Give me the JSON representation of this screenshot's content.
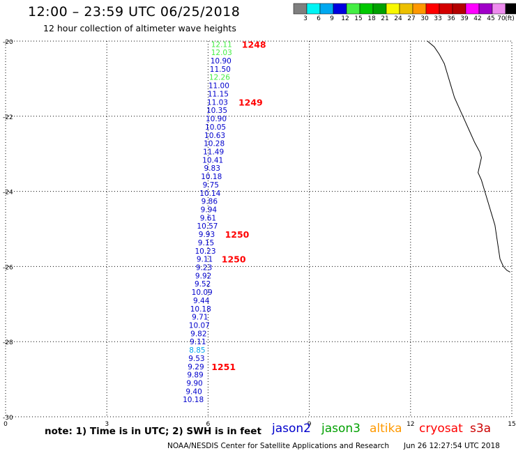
{
  "header": {
    "title": "12:00 – 23:59 UTC 06/25/2018",
    "subtitle": "12 hour collection of altimeter wave heights"
  },
  "legend": {
    "colors": [
      "#7f7f7f",
      "#00f4f4",
      "#00a8f0",
      "#0000e0",
      "#44ee44",
      "#00c800",
      "#00a000",
      "#f8f800",
      "#ecc000",
      "#ff9800",
      "#ff0000",
      "#d40000",
      "#b40000",
      "#ff00ff",
      "#a000c8",
      "#ee8cee",
      "#000000"
    ],
    "labels": [
      "3",
      "6",
      "9",
      "12",
      "15",
      "18",
      "21",
      "24",
      "27",
      "30",
      "33",
      "36",
      "39",
      "42",
      "45",
      "70"
    ],
    "unit": "(ft)"
  },
  "note": "note:  1) Time is in UTC;  2) SWH is in feet",
  "satellites": [
    {
      "name": "jason2",
      "color": "#0000cc"
    },
    {
      "name": "jason3",
      "color": "#00a000"
    },
    {
      "name": "altika",
      "color": "#ff9900"
    },
    {
      "name": "cryosat",
      "color": "#ff0000"
    },
    {
      "name": "s3a",
      "color": "#cc0000"
    }
  ],
  "footer": {
    "credit": "NOAA/NESDIS Center for Satellite Applications and Research",
    "timestamp": "Jun 26 12:27:54 UTC 2018"
  },
  "chart_data": {
    "type": "scatter",
    "title": "12:00 – 23:59 UTC 06/25/2018",
    "subtitle": "12 hour collection of altimeter wave heights",
    "xlim": [
      0,
      15
    ],
    "ylim": [
      -30,
      -20
    ],
    "x_ticks": [
      0,
      3,
      6,
      9,
      12,
      15
    ],
    "y_ticks": [
      -30,
      -28,
      -26,
      -24,
      -22,
      -20
    ],
    "grid": true,
    "points": [
      {
        "x": 6.4,
        "y": -20.08,
        "value": "12.11",
        "color": "#44ee44"
      },
      {
        "x": 6.4,
        "y": -20.3,
        "value": "12.03",
        "color": "#44ee44"
      },
      {
        "x": 6.38,
        "y": -20.52,
        "value": "10.90",
        "color": "#0000cc"
      },
      {
        "x": 6.36,
        "y": -20.74,
        "value": "11.50",
        "color": "#0000cc"
      },
      {
        "x": 6.34,
        "y": -20.96,
        "value": "12.26",
        "color": "#44ee44"
      },
      {
        "x": 6.32,
        "y": -21.18,
        "value": "11.00",
        "color": "#0000cc"
      },
      {
        "x": 6.3,
        "y": -21.4,
        "value": "11.15",
        "color": "#0000cc"
      },
      {
        "x": 6.28,
        "y": -21.62,
        "value": "11.03",
        "color": "#0000cc"
      },
      {
        "x": 6.26,
        "y": -21.84,
        "value": "10.35",
        "color": "#0000cc"
      },
      {
        "x": 6.24,
        "y": -22.06,
        "value": "10.90",
        "color": "#0000cc"
      },
      {
        "x": 6.22,
        "y": -22.28,
        "value": "10.05",
        "color": "#0000cc"
      },
      {
        "x": 6.2,
        "y": -22.5,
        "value": "10.63",
        "color": "#0000cc"
      },
      {
        "x": 6.18,
        "y": -22.72,
        "value": "10.28",
        "color": "#0000cc"
      },
      {
        "x": 6.16,
        "y": -22.94,
        "value": "11.49",
        "color": "#0000cc"
      },
      {
        "x": 6.14,
        "y": -23.16,
        "value": "10.41",
        "color": "#0000cc"
      },
      {
        "x": 6.12,
        "y": -23.38,
        "value": "9.83",
        "color": "#0000cc"
      },
      {
        "x": 6.1,
        "y": -23.6,
        "value": "10.18",
        "color": "#0000cc"
      },
      {
        "x": 6.08,
        "y": -23.82,
        "value": "9.75",
        "color": "#0000cc"
      },
      {
        "x": 6.06,
        "y": -24.04,
        "value": "10.14",
        "color": "#0000cc"
      },
      {
        "x": 6.04,
        "y": -24.26,
        "value": "9.86",
        "color": "#0000cc"
      },
      {
        "x": 6.02,
        "y": -24.48,
        "value": "9.94",
        "color": "#0000cc"
      },
      {
        "x": 6.0,
        "y": -24.7,
        "value": "9.61",
        "color": "#0000cc"
      },
      {
        "x": 5.98,
        "y": -24.92,
        "value": "10.57",
        "color": "#0000cc"
      },
      {
        "x": 5.96,
        "y": -25.14,
        "value": "9.93",
        "color": "#0000cc"
      },
      {
        "x": 5.94,
        "y": -25.36,
        "value": "9.15",
        "color": "#0000cc"
      },
      {
        "x": 5.92,
        "y": -25.58,
        "value": "10.23",
        "color": "#0000cc"
      },
      {
        "x": 5.9,
        "y": -25.8,
        "value": "9.11",
        "color": "#0000cc"
      },
      {
        "x": 5.88,
        "y": -26.02,
        "value": "9.23",
        "color": "#0000cc"
      },
      {
        "x": 5.86,
        "y": -26.24,
        "value": "9.92",
        "color": "#0000cc"
      },
      {
        "x": 5.84,
        "y": -26.46,
        "value": "9.52",
        "color": "#0000cc"
      },
      {
        "x": 5.82,
        "y": -26.68,
        "value": "10.09",
        "color": "#0000cc"
      },
      {
        "x": 5.8,
        "y": -26.9,
        "value": "9.44",
        "color": "#0000cc"
      },
      {
        "x": 5.78,
        "y": -27.12,
        "value": "10.18",
        "color": "#0000cc"
      },
      {
        "x": 5.76,
        "y": -27.34,
        "value": "9.71",
        "color": "#0000cc"
      },
      {
        "x": 5.74,
        "y": -27.56,
        "value": "10.07",
        "color": "#0000cc"
      },
      {
        "x": 5.72,
        "y": -27.78,
        "value": "9.82",
        "color": "#0000cc"
      },
      {
        "x": 5.7,
        "y": -28.0,
        "value": "9.11",
        "color": "#0000cc"
      },
      {
        "x": 5.68,
        "y": -28.22,
        "value": "8.85",
        "color": "#00a8f0"
      },
      {
        "x": 5.66,
        "y": -28.44,
        "value": "9.53",
        "color": "#0000cc"
      },
      {
        "x": 5.64,
        "y": -28.66,
        "value": "9.29",
        "color": "#0000cc"
      },
      {
        "x": 5.62,
        "y": -28.88,
        "value": "9.89",
        "color": "#0000cc"
      },
      {
        "x": 5.6,
        "y": -29.1,
        "value": "9.90",
        "color": "#0000cc"
      },
      {
        "x": 5.58,
        "y": -29.32,
        "value": "9.40",
        "color": "#0000cc"
      },
      {
        "x": 5.56,
        "y": -29.54,
        "value": "10.18",
        "color": "#0000cc"
      }
    ],
    "annotations": [
      {
        "text": "1248",
        "x": 7.0,
        "y": -20.08,
        "color": "#ff0000"
      },
      {
        "text": "1249",
        "x": 6.9,
        "y": -21.62,
        "color": "#ff0000"
      },
      {
        "text": "1250",
        "x": 6.5,
        "y": -25.14,
        "color": "#ff0000"
      },
      {
        "text": "1250",
        "x": 6.4,
        "y": -25.8,
        "color": "#ff0000"
      },
      {
        "text": "1251",
        "x": 6.1,
        "y": -28.66,
        "color": "#ff0000"
      }
    ],
    "coastline": [
      [
        12.5,
        -20.0
      ],
      [
        12.7,
        -20.15
      ],
      [
        12.85,
        -20.35
      ],
      [
        13.0,
        -20.6
      ],
      [
        13.1,
        -20.9
      ],
      [
        13.2,
        -21.2
      ],
      [
        13.3,
        -21.5
      ],
      [
        13.45,
        -21.8
      ],
      [
        13.6,
        -22.1
      ],
      [
        13.75,
        -22.4
      ],
      [
        13.9,
        -22.7
      ],
      [
        14.05,
        -22.95
      ],
      [
        14.1,
        -23.1
      ],
      [
        14.05,
        -23.3
      ],
      [
        14.0,
        -23.5
      ],
      [
        14.1,
        -23.7
      ],
      [
        14.2,
        -24.0
      ],
      [
        14.3,
        -24.3
      ],
      [
        14.4,
        -24.6
      ],
      [
        14.5,
        -24.9
      ],
      [
        14.55,
        -25.2
      ],
      [
        14.6,
        -25.5
      ],
      [
        14.65,
        -25.8
      ],
      [
        14.75,
        -26.0
      ],
      [
        14.85,
        -26.1
      ],
      [
        14.95,
        -26.15
      ]
    ]
  }
}
